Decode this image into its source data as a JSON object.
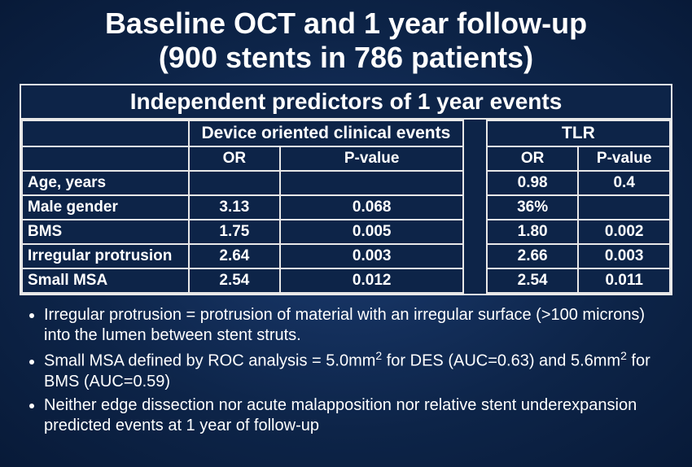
{
  "title_line1": "Baseline OCT and 1 year follow-up",
  "title_line2": "(900 stents in 786 patients)",
  "table": {
    "caption": "Independent predictors of 1 year events",
    "group1_header": "Device oriented clinical events",
    "group2_header": "TLR",
    "col_or": "OR",
    "col_pvalue": "P-value",
    "rows": [
      {
        "label": "Age, years",
        "or1": "",
        "p1": "",
        "or2": "0.98",
        "p2": "0.4"
      },
      {
        "label": "Male gender",
        "or1": "3.13",
        "p1": "0.068",
        "or2": "36%",
        "p2": ""
      },
      {
        "label": "BMS",
        "or1": "1.75",
        "p1": "0.005",
        "or2": "1.80",
        "p2": "0.002"
      },
      {
        "label": "Irregular protrusion",
        "or1": "2.64",
        "p1": "0.003",
        "or2": "2.66",
        "p2": "0.003"
      },
      {
        "label": "Small MSA",
        "or1": "2.54",
        "p1": "0.012",
        "or2": "2.54",
        "p2": "0.011"
      }
    ]
  },
  "bullets": {
    "b1": "Irregular protrusion = protrusion of material with an irregular surface (>100 microns) into the lumen between stent struts.",
    "b2_html": "Small MSA defined by ROC analysis = 5.0mm<sup>2</sup> for DES (AUC=0.63) and 5.6mm<sup>2</sup> for BMS (AUC=0.59)",
    "b3": "Neither edge dissection nor acute malapposition nor relative stent underexpansion predicted events at 1 year of follow-up"
  },
  "colors": {
    "background_center": "#1a3a6e",
    "background_edge": "#081a38",
    "border": "#e8e8e8",
    "text": "#ffffff"
  }
}
